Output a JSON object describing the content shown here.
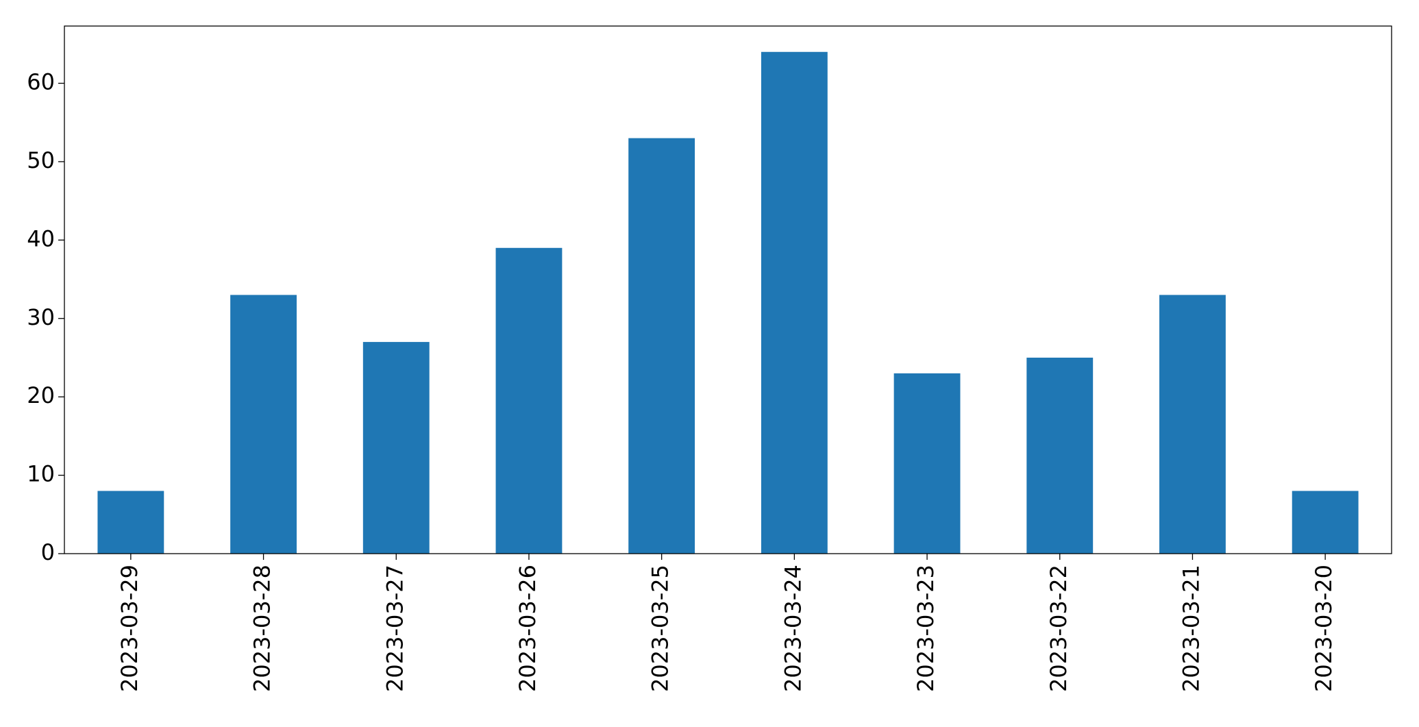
{
  "chart_data": {
    "type": "bar",
    "categories": [
      "2023-03-29",
      "2023-03-28",
      "2023-03-27",
      "2023-03-26",
      "2023-03-25",
      "2023-03-24",
      "2023-03-23",
      "2023-03-22",
      "2023-03-21",
      "2023-03-20"
    ],
    "values": [
      8,
      33,
      27,
      39,
      53,
      64,
      23,
      25,
      33,
      8
    ],
    "color": "#1f77b4",
    "ylim": [
      0,
      67.3
    ],
    "yticks": [
      0,
      10,
      20,
      30,
      40,
      50,
      60
    ],
    "grid": false
  }
}
